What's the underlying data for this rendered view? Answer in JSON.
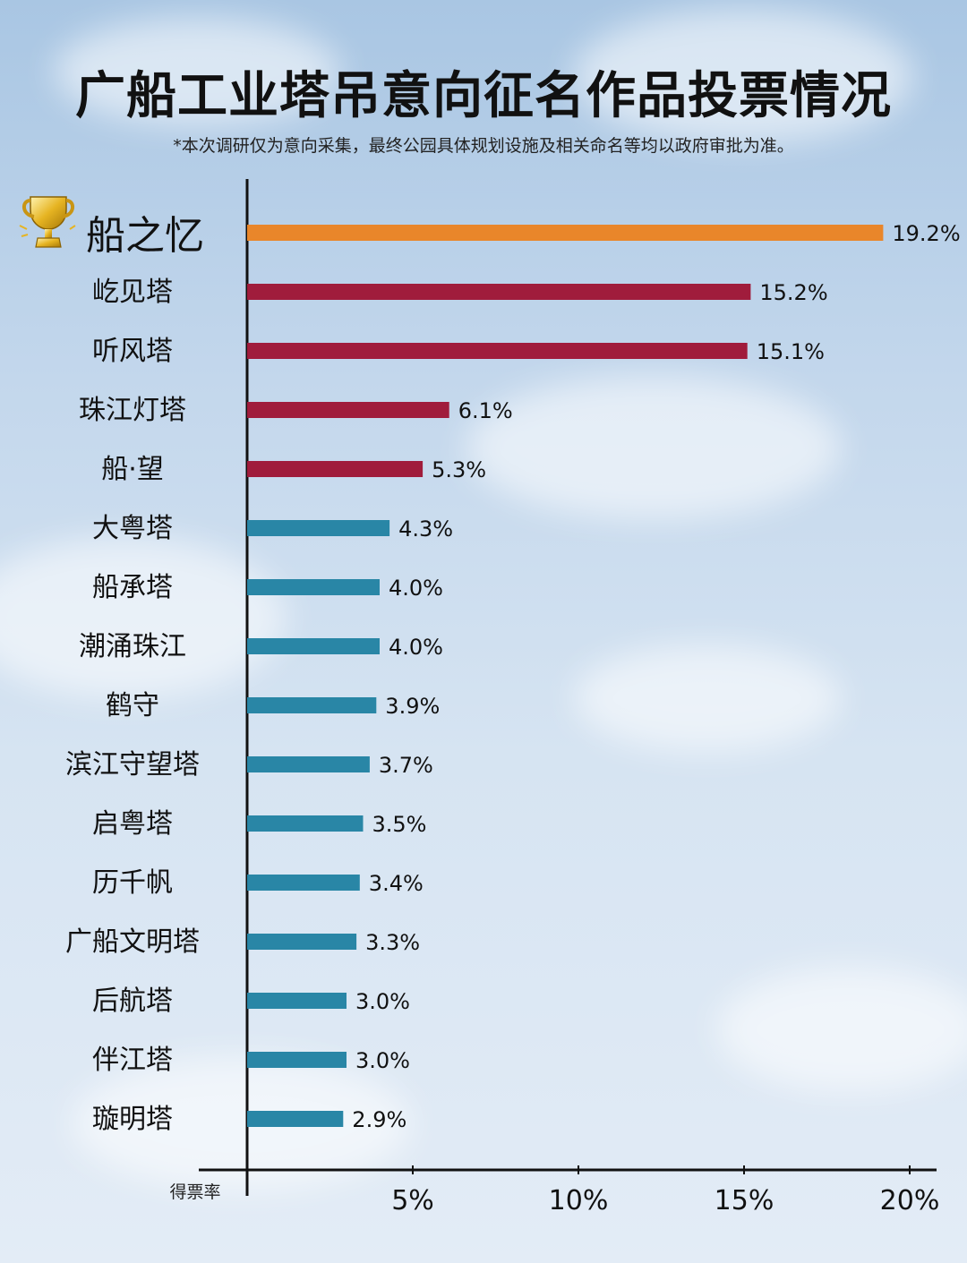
{
  "title": "广船工业塔吊意向征名作品投票情况",
  "subtitle": "*本次调研仅为意向采集，最终公园具体规划设施及相关命名等均以政府审批为准。",
  "colors": {
    "first": "#e9862a",
    "top": "#a01c3c",
    "rest": "#2986a6",
    "axis": "#111111"
  },
  "chart_data": {
    "type": "bar",
    "orientation": "horizontal",
    "xlabel": "得票率",
    "xlim": [
      0,
      20
    ],
    "xticks": [
      "5%",
      "10%",
      "15%",
      "20%"
    ],
    "xtick_values": [
      5,
      10,
      15,
      20
    ],
    "grid": false,
    "legend": "none",
    "categories": [
      "船之忆",
      "屹见塔",
      "听风塔",
      "珠江灯塔",
      "船·望",
      "大粤塔",
      "船承塔",
      "潮涌珠江",
      "鹤守",
      "滨江守望塔",
      "启粤塔",
      "历千帆",
      "广船文明塔",
      "后航塔",
      "伴江塔",
      "璇明塔"
    ],
    "values": [
      19.2,
      15.2,
      15.1,
      6.1,
      5.3,
      4.3,
      4.0,
      4.0,
      3.9,
      3.7,
      3.5,
      3.4,
      3.3,
      3.0,
      3.0,
      2.9
    ],
    "value_labels": [
      "19.2%",
      "15.2%",
      "15.1%",
      "6.1%",
      "5.3%",
      "4.3%",
      "4.0%",
      "4.0%",
      "3.9%",
      "3.7%",
      "3.5%",
      "3.4%",
      "3.3%",
      "3.0%",
      "3.0%",
      "2.9%"
    ],
    "color_groups": [
      "first",
      "top",
      "top",
      "top",
      "top",
      "rest",
      "rest",
      "rest",
      "rest",
      "rest",
      "rest",
      "rest",
      "rest",
      "rest",
      "rest",
      "rest"
    ]
  }
}
